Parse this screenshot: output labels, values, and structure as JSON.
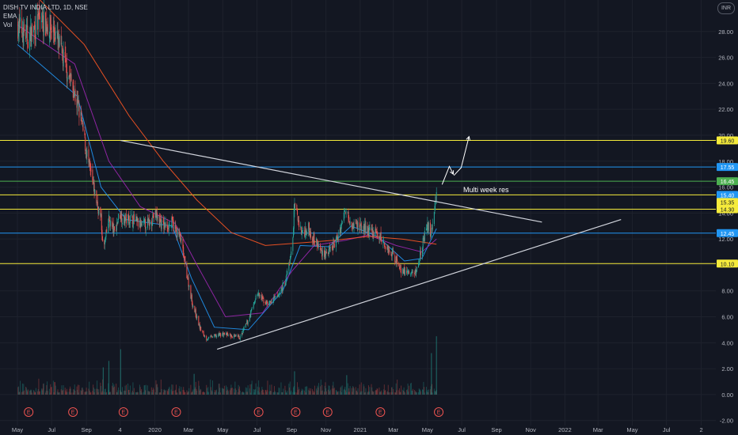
{
  "legend": {
    "symbol": "DISH TV INDIA LTD, 1D, NSE",
    "ema": "EMA",
    "vol": "Vol"
  },
  "currency_button": "INR",
  "annotation": "Multi week res",
  "colors": {
    "background": "#131722",
    "grid": "#1e222d",
    "up": "#26a69a",
    "down": "#ef5350",
    "yellow_line": "#f5eb3b",
    "blue_line": "#2196f3",
    "green_line": "#4caf50",
    "trendline": "#d1d4dc",
    "ema_fast": "#2196f3",
    "ema_mid": "#9c27b0",
    "ema_slow": "#ff5722"
  },
  "chart_data": {
    "type": "candlestick",
    "x_ticks": [
      "May",
      "Jul",
      "Sep",
      "4",
      "2020",
      "Mar",
      "May",
      "Jul",
      "Sep",
      "Nov",
      "2021",
      "Mar",
      "May",
      "Jul",
      "Sep",
      "Nov",
      "2022",
      "Mar",
      "May",
      "Jul",
      "2"
    ],
    "y_ticks": [
      "28.00",
      "26.00",
      "24.00",
      "22.00",
      "20.00",
      "18.00",
      "16.00",
      "14.00",
      "12.00",
      "10.00",
      "8.00",
      "6.00",
      "4.00",
      "2.00",
      "0.00",
      "-2.00"
    ],
    "y_range": [
      -2.2,
      30
    ],
    "price_tags": [
      {
        "label": "19.60",
        "value": 19.6,
        "style": "yellow"
      },
      {
        "label": "17.55",
        "value": 17.55,
        "style": "blue"
      },
      {
        "label": "16.45",
        "value": 16.45,
        "style": "green"
      },
      {
        "label": "15.40",
        "value": 15.4,
        "style": "blue"
      },
      {
        "label": "15.35",
        "value": 15.35,
        "style": "yellow"
      },
      {
        "label": "14.30",
        "value": 14.3,
        "style": "yellow"
      },
      {
        "label": "12.45",
        "value": 12.45,
        "style": "blue"
      },
      {
        "label": "10.10",
        "value": 10.1,
        "style": "yellow"
      }
    ],
    "horizontal_lines": [
      {
        "value": 19.6,
        "style": "yellow"
      },
      {
        "value": 17.55,
        "style": "blue"
      },
      {
        "value": 16.45,
        "style": "green"
      },
      {
        "value": 15.4,
        "style": "yellow"
      },
      {
        "value": 14.3,
        "style": "yellow"
      },
      {
        "value": 12.45,
        "style": "blue"
      },
      {
        "value": 10.1,
        "style": "yellow"
      }
    ],
    "trendlines": [
      {
        "from": {
          "date": "2019-11-05",
          "price": 19.6
        },
        "to": {
          "date": "2021-11-25",
          "price": 13.3
        }
      },
      {
        "from": {
          "date": "2020-04-25",
          "price": 3.5
        },
        "to": {
          "date": "2022-04-15",
          "price": 13.5
        }
      }
    ],
    "arrows": [
      {
        "points": [
          {
            "date": "2021-05-31",
            "price": 16.2
          },
          {
            "date": "2021-06-13",
            "price": 17.6
          },
          {
            "date": "2021-06-20",
            "price": 17.0
          }
        ]
      },
      {
        "points": [
          {
            "date": "2021-06-21",
            "price": 16.9
          },
          {
            "date": "2021-07-04",
            "price": 17.5
          },
          {
            "date": "2021-07-18",
            "price": 19.9
          }
        ]
      }
    ],
    "price_path": [
      [
        "2019-05-05",
        28.5
      ],
      [
        "2019-05-25",
        27.5
      ],
      [
        "2019-06-15",
        29.0
      ],
      [
        "2019-07-10",
        28.0
      ],
      [
        "2019-07-25",
        26.0
      ],
      [
        "2019-08-10",
        24.0
      ],
      [
        "2019-08-25",
        21.5
      ],
      [
        "2019-09-10",
        17.5
      ],
      [
        "2019-09-20",
        15.5
      ],
      [
        "2019-10-01",
        13.5
      ],
      [
        "2019-10-05",
        11.0
      ],
      [
        "2019-10-15",
        13.5
      ],
      [
        "2019-10-25",
        12.5
      ],
      [
        "2019-11-03",
        14.0
      ],
      [
        "2019-11-10",
        13.5
      ],
      [
        "2019-11-25",
        13.6
      ],
      [
        "2019-12-10",
        13.0
      ],
      [
        "2019-12-25",
        13.2
      ],
      [
        "2020-01-05",
        13.9
      ],
      [
        "2020-01-20",
        13.0
      ],
      [
        "2020-02-05",
        13.2
      ],
      [
        "2020-02-20",
        12.0
      ],
      [
        "2020-03-01",
        9.5
      ],
      [
        "2020-03-12",
        7.0
      ],
      [
        "2020-03-25",
        5.2
      ],
      [
        "2020-04-05",
        4.3
      ],
      [
        "2020-04-20",
        4.5
      ],
      [
        "2020-05-05",
        4.7
      ],
      [
        "2020-05-20",
        4.5
      ],
      [
        "2020-06-05",
        4.4
      ],
      [
        "2020-06-20",
        5.8
      ],
      [
        "2020-07-05",
        7.8
      ],
      [
        "2020-07-15",
        7.3
      ],
      [
        "2020-07-25",
        7.0
      ],
      [
        "2020-08-10",
        7.5
      ],
      [
        "2020-08-25",
        8.8
      ],
      [
        "2020-09-05",
        11.0
      ],
      [
        "2020-09-10",
        14.5
      ],
      [
        "2020-09-15",
        13.8
      ],
      [
        "2020-09-22",
        12.5
      ],
      [
        "2020-10-05",
        12.8
      ],
      [
        "2020-10-15",
        12.0
      ],
      [
        "2020-10-28",
        11.0
      ],
      [
        "2020-11-10",
        10.9
      ],
      [
        "2020-11-25",
        12.0
      ],
      [
        "2020-12-05",
        13.5
      ],
      [
        "2020-12-12",
        14.5
      ],
      [
        "2020-12-20",
        13.2
      ],
      [
        "2021-01-05",
        13.0
      ],
      [
        "2021-01-20",
        12.6
      ],
      [
        "2021-02-05",
        12.4
      ],
      [
        "2021-02-20",
        11.4
      ],
      [
        "2021-03-05",
        10.8
      ],
      [
        "2021-03-20",
        9.6
      ],
      [
        "2021-04-05",
        9.3
      ],
      [
        "2021-04-15",
        9.5
      ],
      [
        "2021-04-25",
        11.5
      ],
      [
        "2021-05-05",
        13.0
      ],
      [
        "2021-05-12",
        12.5
      ],
      [
        "2021-05-18",
        14.8
      ],
      [
        "2021-05-21",
        15.5
      ]
    ],
    "emas": [
      {
        "name": "fast",
        "path": [
          [
            "2019-05-05",
            27.0
          ],
          [
            "2019-08-20",
            23.0
          ],
          [
            "2019-10-01",
            16.0
          ],
          [
            "2019-11-15",
            13.5
          ],
          [
            "2020-02-05",
            13.0
          ],
          [
            "2020-03-10",
            9.0
          ],
          [
            "2020-04-20",
            5.2
          ],
          [
            "2020-06-20",
            5.0
          ],
          [
            "2020-08-20",
            8.0
          ],
          [
            "2020-09-20",
            11.5
          ],
          [
            "2020-11-10",
            11.4
          ],
          [
            "2020-12-20",
            13.0
          ],
          [
            "2021-02-05",
            12.2
          ],
          [
            "2021-03-25",
            10.3
          ],
          [
            "2021-04-25",
            10.5
          ],
          [
            "2021-05-21",
            12.8
          ]
        ]
      },
      {
        "name": "mid",
        "path": [
          [
            "2019-05-05",
            28.5
          ],
          [
            "2019-08-15",
            25.5
          ],
          [
            "2019-10-15",
            18.0
          ],
          [
            "2019-12-10",
            14.5
          ],
          [
            "2020-02-10",
            13.2
          ],
          [
            "2020-03-20",
            10.0
          ],
          [
            "2020-05-10",
            6.0
          ],
          [
            "2020-07-15",
            6.3
          ],
          [
            "2020-09-05",
            9.5
          ],
          [
            "2020-10-15",
            11.5
          ],
          [
            "2020-12-10",
            11.9
          ],
          [
            "2021-01-20",
            12.3
          ],
          [
            "2021-03-10",
            11.5
          ],
          [
            "2021-04-25",
            11.0
          ],
          [
            "2021-05-21",
            12.0
          ]
        ]
      },
      {
        "name": "slow",
        "path": [
          [
            "2019-06-01",
            31.0
          ],
          [
            "2019-09-01",
            27.0
          ],
          [
            "2019-11-20",
            21.5
          ],
          [
            "2020-01-20",
            18.0
          ],
          [
            "2020-03-20",
            15.0
          ],
          [
            "2020-05-20",
            12.5
          ],
          [
            "2020-07-20",
            11.5
          ],
          [
            "2020-09-20",
            11.7
          ],
          [
            "2020-11-20",
            11.9
          ],
          [
            "2021-01-20",
            12.2
          ],
          [
            "2021-03-20",
            12.0
          ],
          [
            "2021-05-21",
            11.6
          ]
        ]
      }
    ],
    "volume_spikes": [
      {
        "date": "2019-10-05",
        "value": 2.1
      },
      {
        "date": "2019-10-15",
        "value": 2.6
      },
      {
        "date": "2019-11-05",
        "value": 3.5
      },
      {
        "date": "2020-03-15",
        "value": 1.6
      },
      {
        "date": "2020-09-10",
        "value": 1.8
      },
      {
        "date": "2020-12-12",
        "value": 1.5
      },
      {
        "date": "2021-05-12",
        "value": 3.2
      },
      {
        "date": "2021-05-21",
        "value": 4.5
      }
    ],
    "earnings_markers": [
      "2019-05-25",
      "2019-08-12",
      "2019-11-10",
      "2020-02-12",
      "2020-07-08",
      "2020-09-12",
      "2020-11-08",
      "2021-02-10",
      "2021-05-25"
    ],
    "earnings_label": "E"
  }
}
